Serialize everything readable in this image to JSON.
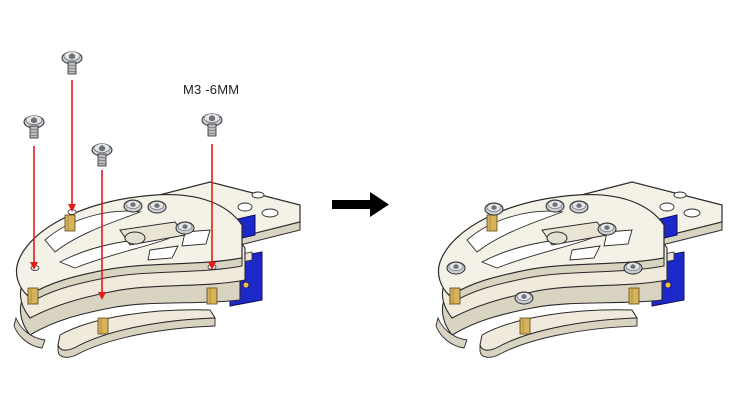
{
  "annotation": {
    "screw_spec": "M3 -6MM"
  },
  "colors": {
    "plate": "#f4f1e6",
    "plate_edge": "#d9d4c2",
    "outline": "#2a2a2a",
    "brass": "#d7b25a",
    "screw": "#b9bcc0",
    "screw_dark": "#7d8186",
    "servo": "#1c28c8",
    "arrow_red": "#e51b1b",
    "step_arrow": "#000000"
  },
  "icons": {
    "screw": "screw-icon",
    "step_arrow": "arrow-right-icon"
  }
}
